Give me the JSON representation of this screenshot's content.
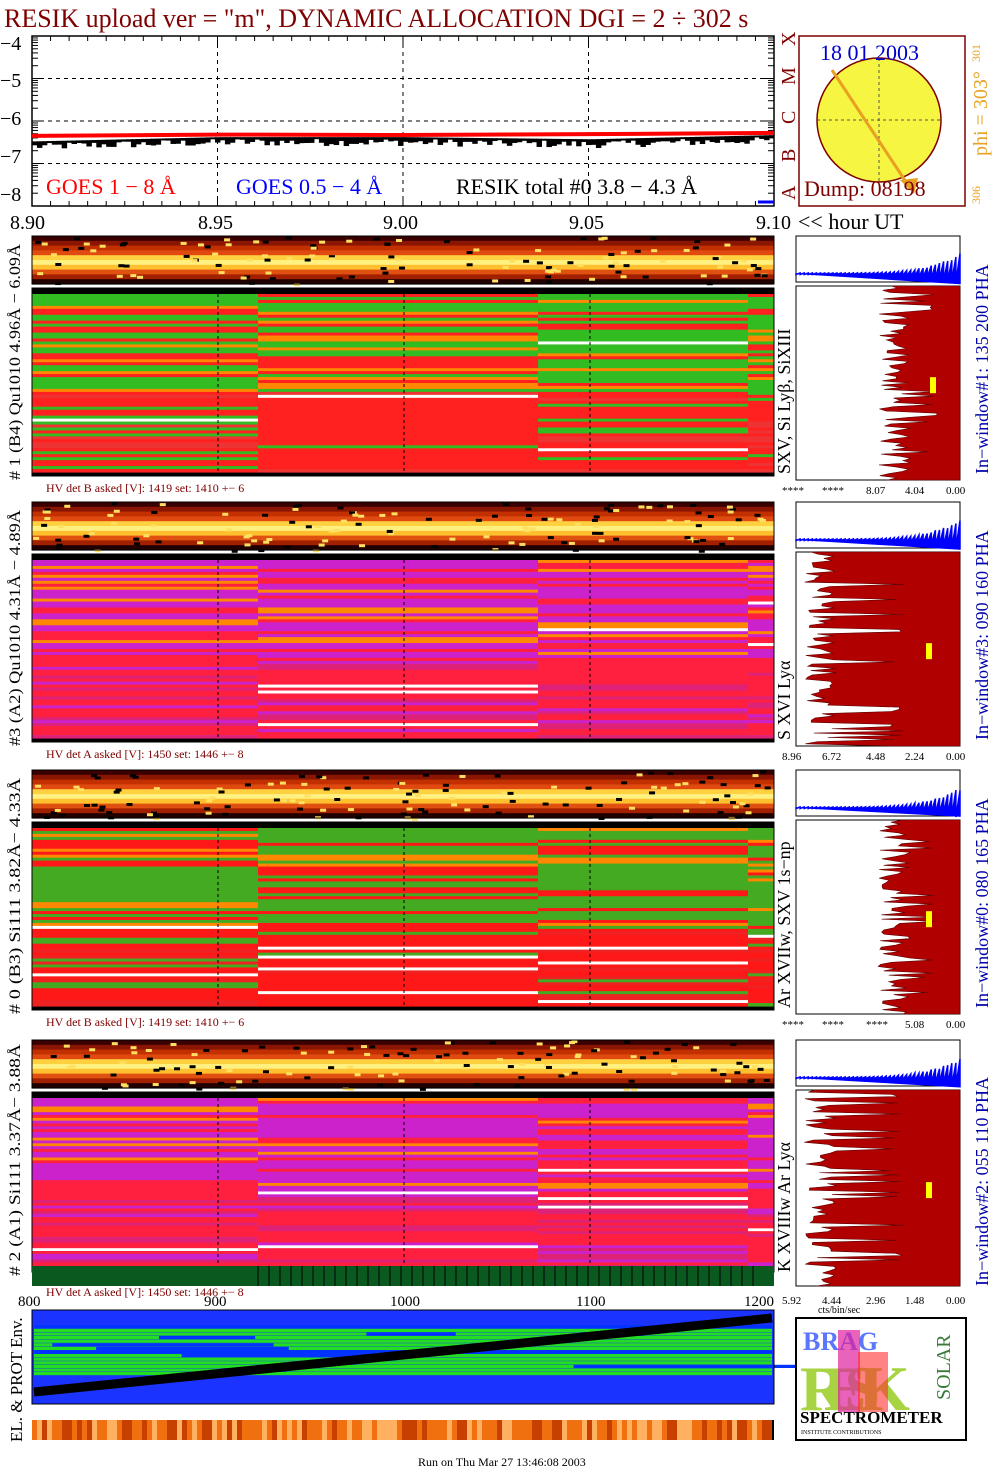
{
  "title": "RESIK upload ver = \"m\", DYNAMIC ALLOCATION  DGI =   2 ÷ 302 s",
  "colors": {
    "dark_red": "#7f0000",
    "red": "#ff0000",
    "blue": "#0000ff",
    "yellow": "#f5f542",
    "orange": "#e8a020",
    "green": "#33cc33",
    "magenta": "#c020c0"
  },
  "goes": {
    "yticks": [
      "−4",
      "−5",
      "−6",
      "−7",
      "−8"
    ],
    "xticks": [
      "8.90",
      "8.95",
      "9.00",
      "9.05",
      "9.10"
    ],
    "x_suffix": "<< hour UT",
    "legend_goes18": "GOES 1 − 8 Å",
    "legend_goes054": "GOES 0.5 − 4 Å",
    "legend_resik": "RESIK total #0  3.8 − 4.3 Å",
    "class_letters": [
      "X",
      "M",
      "C",
      "B",
      "A"
    ]
  },
  "sun": {
    "date": "18 01 2003",
    "dump": "Dump: 08198",
    "phi": "phi = 303°",
    "phi_top": "301",
    "phi_bottom": "306"
  },
  "channels": [
    {
      "label": "# 1 (B4) Qu1010 4.96Å − 6.09Å",
      "lines": "SXV, Si Lyβ, SiXIII",
      "window": "In−window#1:  135 200 PHA",
      "hv": "HV det B asked [V]:  1419 set:  1410  +−    6",
      "pha_ticks": [
        "****",
        "****",
        "8.07",
        "4.04",
        "0.00"
      ],
      "scheme": "green"
    },
    {
      "label": "#3 (A2) Qu1010  4.31Å − 4.89Å",
      "lines": "S XVI Lyα",
      "window": "In−window#3:  090 160 PHA",
      "hv": "HV det A asked [V]:  1450 set:  1446  +−    8",
      "pha_ticks": [
        "8.96",
        "6.72",
        "4.48",
        "2.24",
        "0.00"
      ],
      "scheme": "magenta"
    },
    {
      "label": "# 0 (B3) Si111  3.82Å− 4.33Å",
      "lines": "Ar XVIIw,  SXV 1s−np",
      "window": "In−window#0:  080 165 PHA",
      "hv": "HV det B asked [V]:  1419 set:  1410  +−    6",
      "pha_ticks": [
        "****",
        "****",
        "****",
        "5.08",
        "0.00"
      ],
      "scheme": "green2"
    },
    {
      "label": "# 2 (A1) Si111  3.37Å− 3.88Å",
      "lines": "K XVIIIw  Ar Lyα",
      "window": "In−window#2:  055 110 PHA",
      "hv": "HV det A asked [V]:  1450 set:  1446  +−    8",
      "pha_ticks": [
        "5.92",
        "4.44",
        "2.96",
        "1.48",
        "0.00"
      ],
      "scheme": "magenta"
    }
  ],
  "pha_xlabel": "cts/bin/sec",
  "env": {
    "label": "EL. & PROT Env.",
    "xticks": [
      "800",
      "900",
      "1000",
      "1100",
      "1200"
    ]
  },
  "logo": {
    "text": "SPECTROMETER",
    "letters": "RESIK",
    "side": "SOLAR",
    "top": "BRAG",
    "fine_print": "INSTITUTE CONTRIBUTIONS"
  },
  "footer": "Run on Thu Mar 27 13:46:08 2003",
  "chart_data": {
    "type": "line",
    "title": "RESIK upload ver = \"m\", DYNAMIC ALLOCATION  DGI =   2 ÷ 302 s",
    "xlabel": "<< hour UT",
    "xlim": [
      8.9,
      9.1
    ],
    "ylim": [
      -8,
      -4
    ],
    "series": [
      {
        "name": "GOES 1 − 8 Å",
        "x": [
          8.9,
          8.95,
          9.0,
          9.05,
          9.1
        ],
        "values": [
          -6.35,
          -6.32,
          -6.33,
          -6.31,
          -6.28
        ]
      },
      {
        "name": "RESIK total #0  3.8 − 4.3 Å",
        "x": [
          8.9,
          8.95,
          9.0,
          9.05,
          9.1
        ],
        "values": [
          -6.6,
          -6.5,
          -6.5,
          -6.55,
          -6.45
        ]
      }
    ]
  }
}
